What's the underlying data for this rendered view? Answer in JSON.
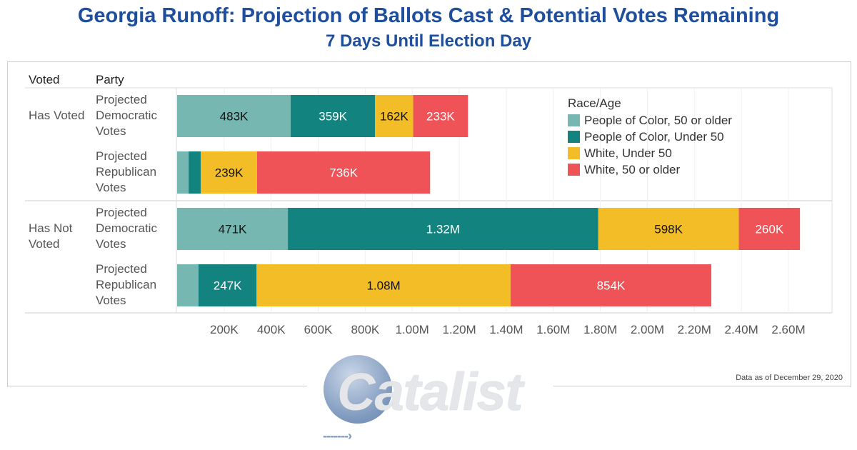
{
  "chart_data": {
    "type": "bar",
    "orientation": "horizontal",
    "stacked": true,
    "title": "Georgia Runoff: Projection of Ballots Cast & Potential Votes Remaining",
    "subtitle": "7 Days Until Election Day",
    "row_headers": [
      "Voted",
      "Party"
    ],
    "groups": [
      "Has Voted",
      "Has Not Voted"
    ],
    "categories": [
      {
        "group": "Has Voted",
        "party": "Projected Democratic Votes"
      },
      {
        "group": "Has Voted",
        "party": "Projected Republican Votes"
      },
      {
        "group": "Has Not Voted",
        "party": "Projected Democratic Votes"
      },
      {
        "group": "Has Not Voted",
        "party": "Projected Republican Votes"
      }
    ],
    "legend_title": "Race/Age",
    "legend_position": "top-right",
    "series": [
      {
        "name": "People of Color, 50 or older",
        "color": "#76b7b2",
        "values": [
          483000,
          49000,
          471000,
          91000
        ],
        "labels": [
          "483K",
          "",
          "471K",
          ""
        ]
      },
      {
        "name": "People of Color, Under 50",
        "color": "#12837f",
        "values": [
          359000,
          52000,
          1320000,
          247000
        ],
        "labels": [
          "359K",
          "",
          "1.32M",
          "247K"
        ]
      },
      {
        "name": "White, Under 50",
        "color": "#f2bd26",
        "values": [
          162000,
          239000,
          598000,
          1080000
        ],
        "labels": [
          "162K",
          "239K",
          "598K",
          "1.08M"
        ]
      },
      {
        "name": "White, 50 or older",
        "color": "#ef5357",
        "values": [
          233000,
          736000,
          260000,
          854000
        ],
        "labels": [
          "233K",
          "736K",
          "260K",
          "854K"
        ]
      }
    ],
    "xlim": [
      0,
      2700000
    ],
    "x_ticks": [
      200000,
      400000,
      600000,
      800000,
      1000000,
      1200000,
      1400000,
      1600000,
      1800000,
      2000000,
      2200000,
      2400000,
      2600000
    ],
    "x_tick_labels": [
      "200K",
      "400K",
      "600K",
      "800K",
      "1.00M",
      "1.20M",
      "1.40M",
      "1.60M",
      "1.80M",
      "2.00M",
      "2.20M",
      "2.40M",
      "2.60M"
    ],
    "grid": true
  },
  "labels": {
    "has_voted": "Has Voted",
    "has_not_voted_1": "Has Not",
    "has_not_voted_2": "Voted",
    "dem": [
      "Projected",
      "Democratic",
      "Votes"
    ],
    "rep": [
      "Projected",
      "Republican",
      "Votes"
    ]
  },
  "footer": "Data as of December 29, 2020",
  "logo": "Catalist"
}
